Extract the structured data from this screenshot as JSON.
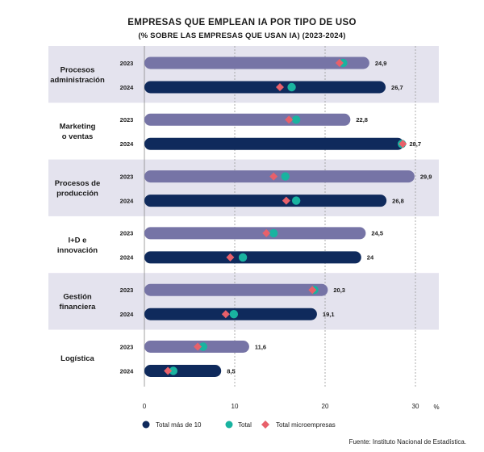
{
  "chart_data": {
    "type": "bar",
    "orientation": "horizontal",
    "title": "EMPRESAS QUE EMPLEAN IA POR TIPO DE USO",
    "subtitle": "(% SOBRE LAS EMPRESAS QUE USAN IA) (2023-2024)",
    "unit_label": "%",
    "xlim": [
      0,
      30
    ],
    "xticks": [
      "0",
      "10",
      "20",
      "30"
    ],
    "grid": "vertical dashed",
    "legend_position": "bottom",
    "source": "Fuente: Instituto Nacional de Estadística.",
    "colors": {
      "bar_2023": "#7674a6",
      "bar_2024": "#0f2a5c",
      "total": "#19b3a0",
      "micro": "#e8606a",
      "band": "#e4e3ee"
    },
    "legend": [
      {
        "name": "Total más de 10",
        "marker": "circle",
        "color": "#0f2a5c"
      },
      {
        "name": "Total",
        "marker": "circle",
        "color": "#19b3a0"
      },
      {
        "name": "Total microempresas",
        "marker": "diamond",
        "color": "#e8606a"
      }
    ],
    "categories": [
      {
        "name": [
          "Procesos",
          "administración"
        ],
        "shaded": true,
        "rows": [
          {
            "year": "2023",
            "value": 24.9,
            "label": "24,9",
            "total": 22.0,
            "micro": 21.6
          },
          {
            "year": "2024",
            "value": 26.7,
            "label": "26,7",
            "total": 16.3,
            "micro": 15.0
          }
        ]
      },
      {
        "name": [
          "Marketing",
          "o ventas"
        ],
        "shaded": false,
        "rows": [
          {
            "year": "2023",
            "value": 22.8,
            "label": "22,8",
            "total": 16.8,
            "micro": 16.0
          },
          {
            "year": "2024",
            "value": 28.7,
            "label": "28,7",
            "total": 28.5,
            "micro": 28.6
          }
        ]
      },
      {
        "name": [
          "Procesos de",
          "producción"
        ],
        "shaded": true,
        "rows": [
          {
            "year": "2023",
            "value": 29.9,
            "label": "29,9",
            "total": 15.6,
            "micro": 14.3
          },
          {
            "year": "2024",
            "value": 26.8,
            "label": "26,8",
            "total": 16.8,
            "micro": 15.7
          }
        ]
      },
      {
        "name": [
          "I+D e",
          "innovación"
        ],
        "shaded": false,
        "rows": [
          {
            "year": "2023",
            "value": 24.5,
            "label": "24,5",
            "total": 14.3,
            "micro": 13.5
          },
          {
            "year": "2024",
            "value": 24,
            "label": "24",
            "total": 10.9,
            "micro": 9.5
          }
        ]
      },
      {
        "name": [
          "Gestión",
          "financiera"
        ],
        "shaded": true,
        "rows": [
          {
            "year": "2023",
            "value": 20.3,
            "label": "20,3",
            "total": 18.8,
            "micro": 18.6
          },
          {
            "year": "2024",
            "value": 19.1,
            "label": "19,1",
            "total": 9.9,
            "micro": 9.0
          }
        ]
      },
      {
        "name": [
          "Logística"
        ],
        "shaded": false,
        "rows": [
          {
            "year": "2023",
            "value": 11.6,
            "label": "11,6",
            "total": 6.5,
            "micro": 5.9
          },
          {
            "year": "2024",
            "value": 8.5,
            "label": "8,5",
            "total": 3.2,
            "micro": 2.6
          }
        ]
      }
    ]
  }
}
